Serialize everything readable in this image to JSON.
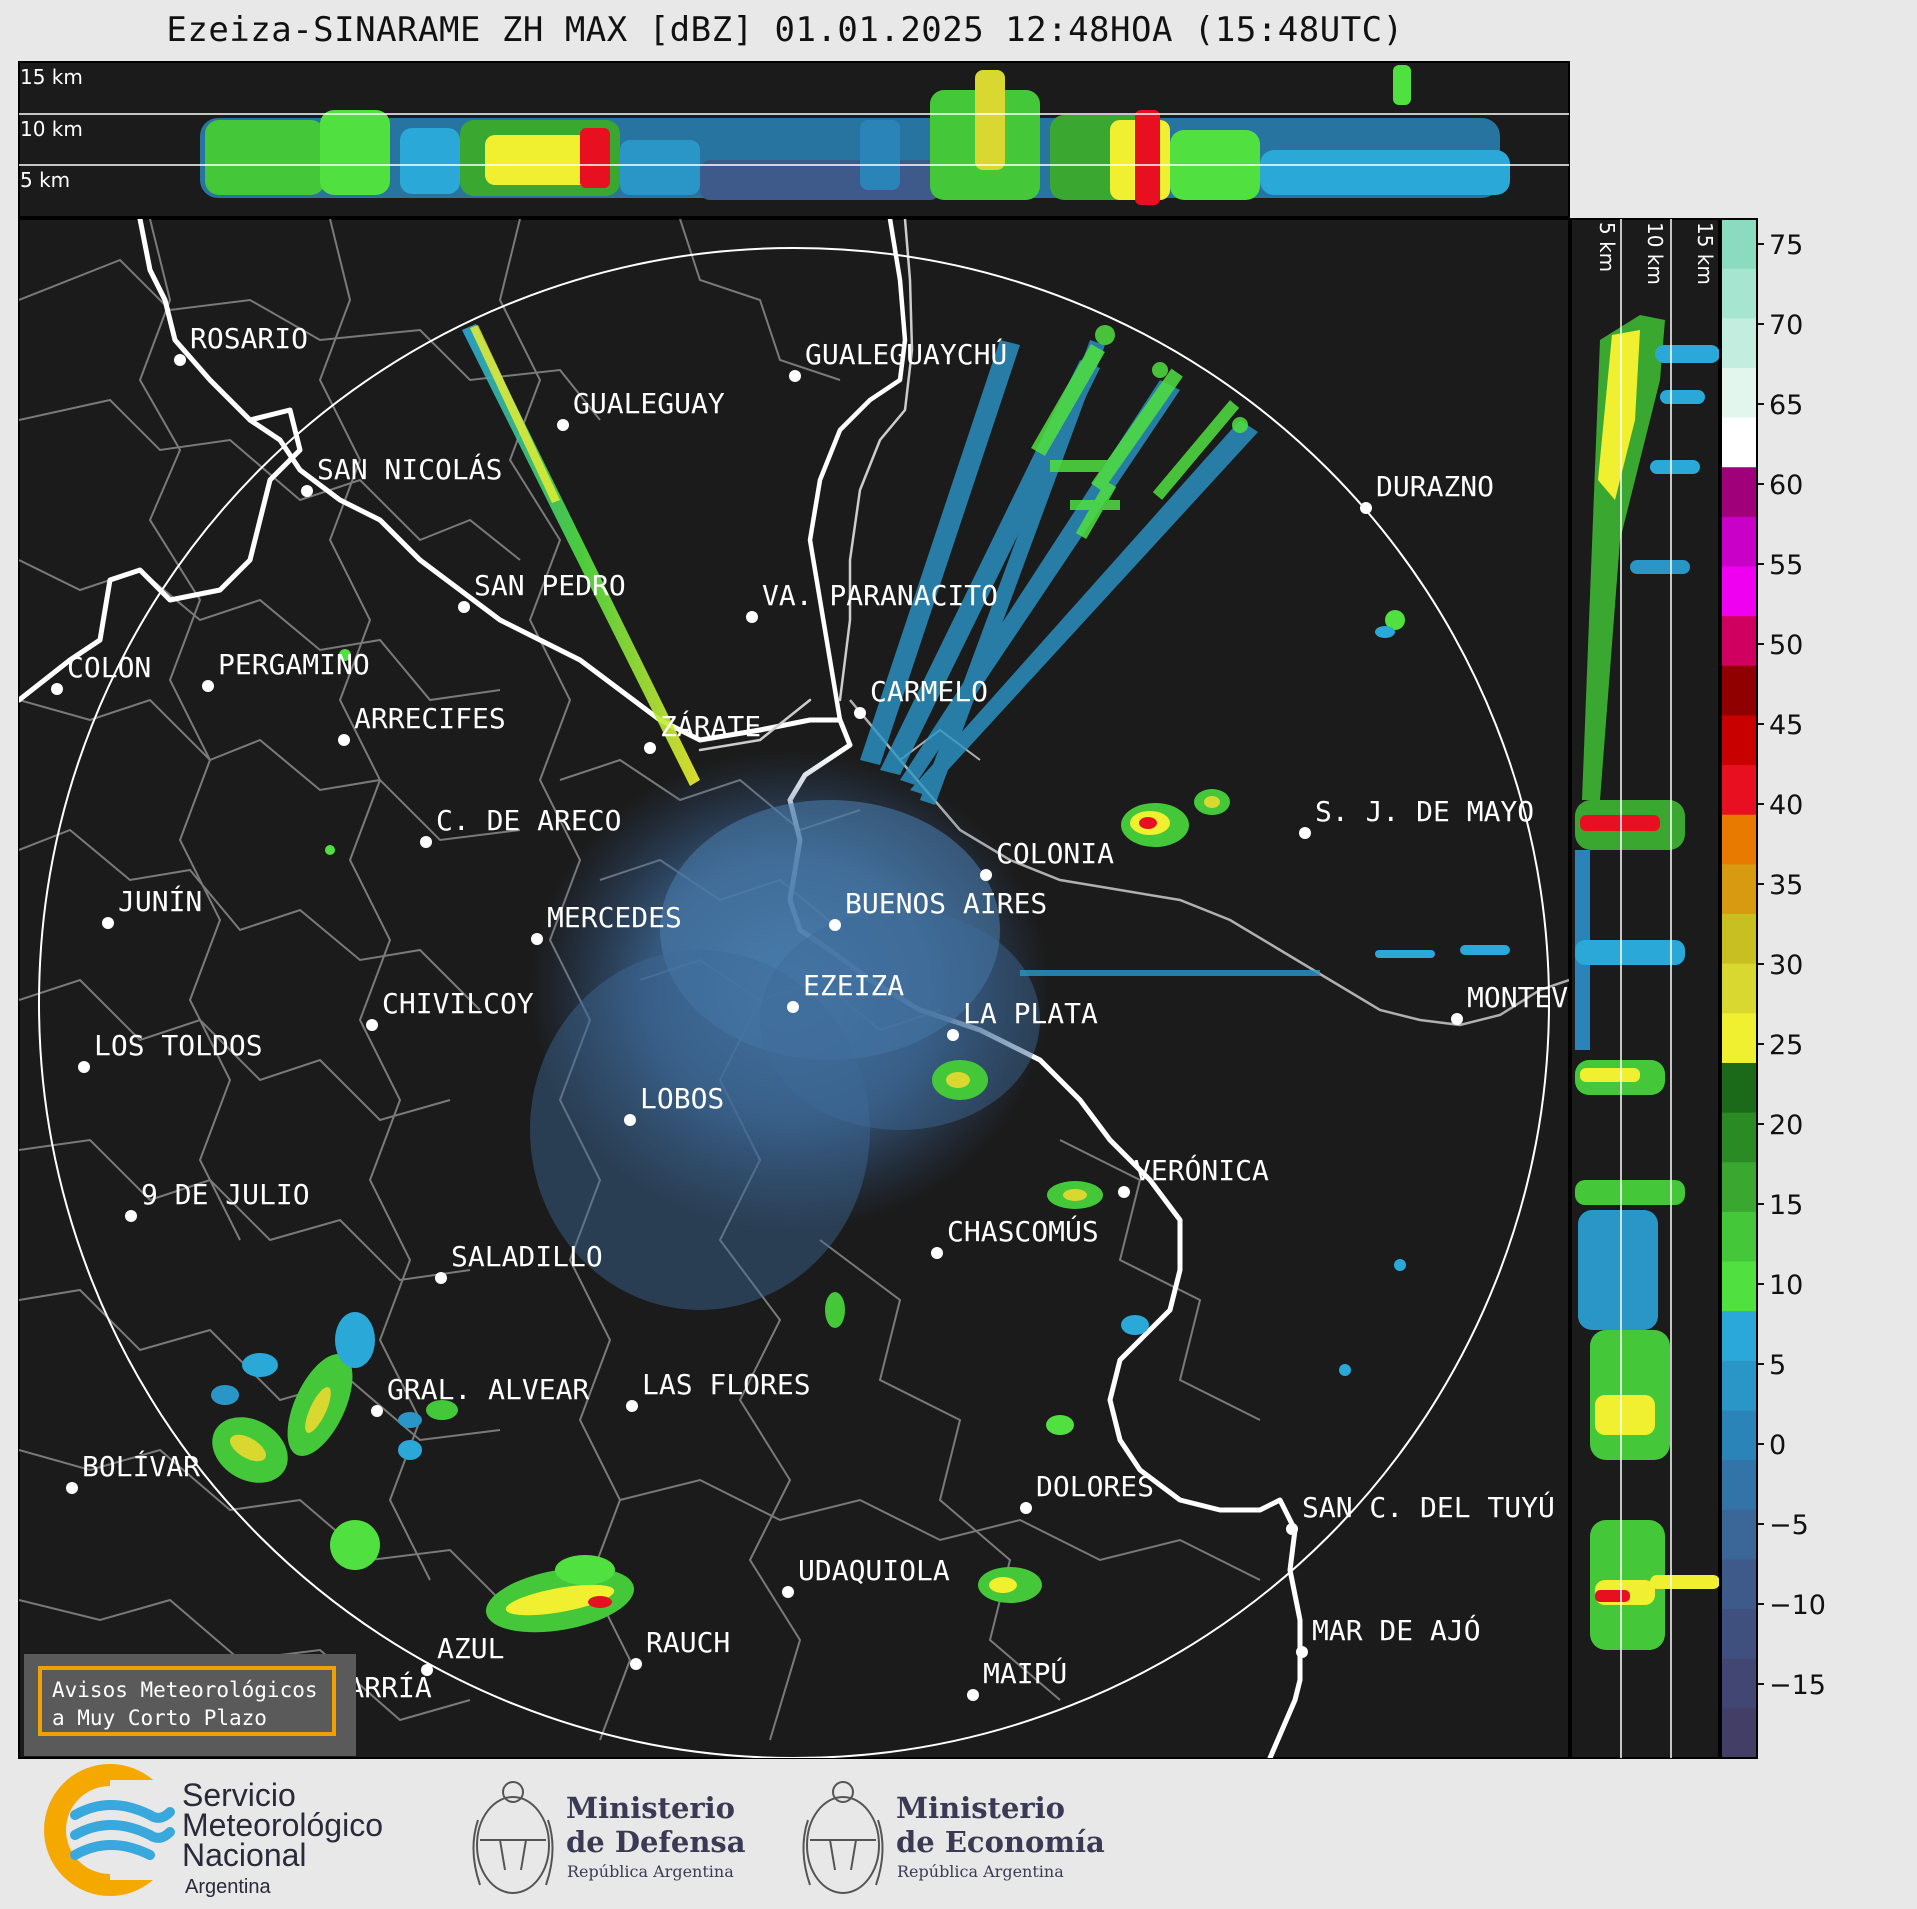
{
  "header": {
    "title": "Ezeiza-SINARAME ZH MAX [dBZ] 01.01.2025 12:48HOA (15:48UTC)"
  },
  "top_panel": {
    "height_labels": [
      "15 km",
      "10 km",
      "5 km"
    ]
  },
  "side_panel": {
    "height_labels": [
      "5 km",
      "10 km",
      "15 km"
    ]
  },
  "colorbar": {
    "unit": "dBZ",
    "ticks": [
      "75",
      "70",
      "65",
      "60",
      "55",
      "50",
      "45",
      "40",
      "35",
      "30",
      "25",
      "20",
      "15",
      "10",
      "5",
      "0",
      "−5",
      "−10",
      "−15"
    ],
    "colors": [
      "#8adbc0",
      "#a6e5cf",
      "#c3eedf",
      "#e2f6ee",
      "#ffffff",
      "#a0007a",
      "#c800c8",
      "#f000f0",
      "#d00060",
      "#900000",
      "#c80000",
      "#e81020",
      "#e87a00",
      "#d89a10",
      "#c8c020",
      "#d8d830",
      "#f0f030",
      "#1a6a1a",
      "#2a8a24",
      "#3aa830",
      "#44c83a",
      "#50e040",
      "#2aa8d8",
      "#2a96c8",
      "#2a84b8",
      "#3274a8",
      "#3a6698",
      "#3e5a8a",
      "#40507e",
      "#424672",
      "#423e66"
    ],
    "accent_border": "#f0a000"
  },
  "cities": [
    {
      "name": "ROSARIO"
    },
    {
      "name": "GUALEGUAYCHÚ"
    },
    {
      "name": "GUALEGUAY"
    },
    {
      "name": "SAN NICOLÁS"
    },
    {
      "name": "DURAZNO"
    },
    {
      "name": "SAN PEDRO"
    },
    {
      "name": "VA. PARANACITO"
    },
    {
      "name": "COLON"
    },
    {
      "name": "PERGAMINO"
    },
    {
      "name": "CARMELO"
    },
    {
      "name": "ARRECIFES"
    },
    {
      "name": "ZÁRATE"
    },
    {
      "name": "S. J. DE MAYO"
    },
    {
      "name": "C. DE ARECO"
    },
    {
      "name": "COLONIA"
    },
    {
      "name": "JUNÍN"
    },
    {
      "name": "BUENOS AIRES"
    },
    {
      "name": "MERCEDES"
    },
    {
      "name": "EZEIZA"
    },
    {
      "name": "MONTEVIDEO"
    },
    {
      "name": "CHIVILCOY"
    },
    {
      "name": "LA PLATA"
    },
    {
      "name": "LOS TOLDOS"
    },
    {
      "name": "LOBOS"
    },
    {
      "name": "VERÓNICA"
    },
    {
      "name": "9 DE JULIO"
    },
    {
      "name": "CHASCOMÚS"
    },
    {
      "name": "SALADILLO"
    },
    {
      "name": "GRAL. ALVEAR"
    },
    {
      "name": "LAS FLORES"
    },
    {
      "name": "BOLÍVAR"
    },
    {
      "name": "DOLORES"
    },
    {
      "name": "SAN C. DEL TUYÚ"
    },
    {
      "name": "UDAQUIOLA"
    },
    {
      "name": "AZUL"
    },
    {
      "name": "RAUCH"
    },
    {
      "name": "MAR DE AJÓ"
    },
    {
      "name": "OLAVARRÍA"
    },
    {
      "name": "MAIPÚ"
    }
  ],
  "banner": {
    "line1": "Avisos Meteorológicos",
    "line2": "a Muy Corto Plazo"
  },
  "logos": {
    "smn": {
      "line1": "Servicio",
      "line2": "Meteorológico",
      "line3": "Nacional",
      "line4": "Argentina"
    },
    "defensa": {
      "line1": "Ministerio",
      "line2": "de Defensa",
      "line3": "República Argentina"
    },
    "economia": {
      "line1": "Ministerio",
      "line2": "de Economía",
      "line3": "República Argentina"
    }
  }
}
